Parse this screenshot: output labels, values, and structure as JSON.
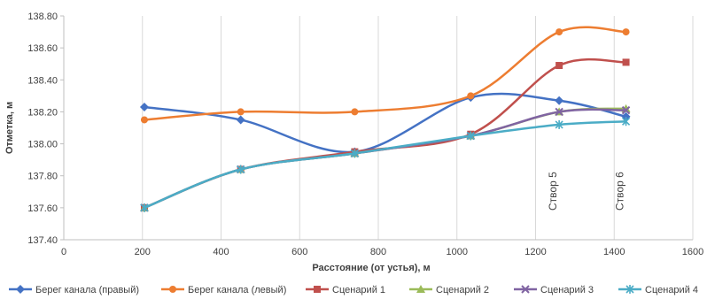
{
  "chart_data": {
    "type": "line",
    "title": "",
    "xlabel": "Расстояние (от устья), м",
    "ylabel": "Отметка, м",
    "xlim": [
      0,
      1600
    ],
    "ylim": [
      137.4,
      138.8
    ],
    "x_ticks": [
      "0",
      "200",
      "400",
      "600",
      "800",
      "1000",
      "1200",
      "1400",
      "1600"
    ],
    "y_ticks": [
      "137.40",
      "137.60",
      "137.80",
      "138.00",
      "138.20",
      "138.40",
      "138.60",
      "138.80"
    ],
    "grid": "vertical",
    "legend_position": "bottom",
    "series": [
      {
        "name": "Берег канала (правый)",
        "color": "#4472C4",
        "marker": "diamond",
        "x": [
          205,
          450,
          740,
          1035,
          1260,
          1430
        ],
        "y": [
          138.23,
          138.15,
          137.95,
          138.29,
          138.27,
          138.17
        ]
      },
      {
        "name": "Берег канала (левый)",
        "color": "#ED7D31",
        "marker": "circle",
        "x": [
          205,
          450,
          740,
          1035,
          1260,
          1430
        ],
        "y": [
          138.15,
          138.2,
          138.2,
          138.3,
          138.7,
          138.7
        ]
      },
      {
        "name": "Сценарий 1",
        "color": "#C0504D",
        "marker": "square",
        "x": [
          205,
          450,
          740,
          1035,
          1260,
          1430
        ],
        "y": [
          137.6,
          137.84,
          137.95,
          138.06,
          138.49,
          138.51
        ]
      },
      {
        "name": "Сценарий 2",
        "color": "#9BBB59",
        "marker": "triangle",
        "x": [
          205,
          450,
          740,
          1035,
          1260,
          1430
        ],
        "y": [
          137.6,
          137.84,
          137.94,
          138.05,
          138.2,
          138.22
        ]
      },
      {
        "name": "Сценарий 3",
        "color": "#8064A2",
        "marker": "x",
        "x": [
          205,
          450,
          740,
          1035,
          1260,
          1430
        ],
        "y": [
          137.6,
          137.84,
          137.94,
          138.05,
          138.2,
          138.21
        ]
      },
      {
        "name": "Сценарий 4",
        "color": "#4BACC6",
        "marker": "star",
        "x": [
          205,
          450,
          740,
          1035,
          1260,
          1430
        ],
        "y": [
          137.6,
          137.84,
          137.94,
          138.05,
          138.12,
          138.14
        ]
      }
    ],
    "annotations": [
      {
        "text": "Створ 5",
        "x": 1260
      },
      {
        "text": "Створ 6",
        "x": 1430
      }
    ]
  }
}
